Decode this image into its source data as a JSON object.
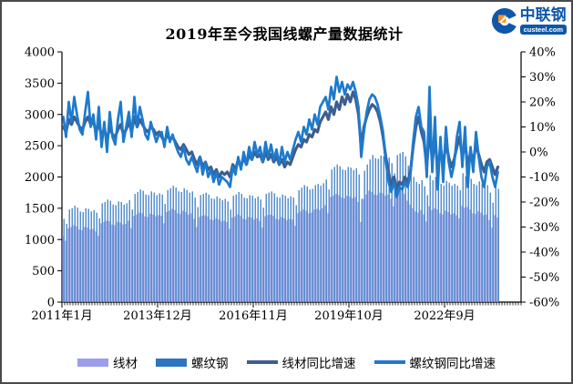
{
  "logo": {
    "brand": "中联钢",
    "domain": "custeel.com"
  },
  "chart_data": {
    "type": "combo bar+line",
    "title": "2019年至今我国线螺产量数据统计",
    "grid": false,
    "legend_position": "bottom",
    "left_axis": {
      "min": 0,
      "max": 4000,
      "step": 500,
      "tick_labels": [
        "4000",
        "3500",
        "3000",
        "2500",
        "2000",
        "1500",
        "1000",
        "500",
        "0"
      ]
    },
    "right_axis": {
      "min": -60,
      "max": 40,
      "step": 10,
      "tick_labels": [
        "40%",
        "30%",
        "20%",
        "10%",
        "0%",
        "-10%",
        "-20%",
        "-30%",
        "-40%",
        "-50%",
        "-60%"
      ]
    },
    "x_axis": {
      "tick_labels": [
        "2011年1月",
        "2013年12月",
        "2016年11月",
        "2019年10月",
        "2022年9月"
      ],
      "tick_month_indexes": [
        0,
        35,
        70,
        105,
        140
      ],
      "months_per_point": 1,
      "total_months": 160,
      "axis_extent_months": 168
    },
    "series": [
      {
        "name": "线材",
        "type": "bar",
        "axis": "left",
        "color": "#9b9eea",
        "values": [
          1050,
          980,
          1180,
          1200,
          1230,
          1210,
          1160,
          1150,
          1200,
          1190,
          1160,
          1170,
          1130,
          1060,
          1260,
          1280,
          1300,
          1290,
          1240,
          1230,
          1280,
          1270,
          1240,
          1250,
          1300,
          1180,
          1380,
          1400,
          1430,
          1420,
          1370,
          1360,
          1410,
          1400,
          1370,
          1390,
          1380,
          1260,
          1440,
          1460,
          1490,
          1470,
          1420,
          1410,
          1460,
          1440,
          1400,
          1420,
          1330,
          1200,
          1360,
          1380,
          1390,
          1370,
          1320,
          1310,
          1340,
          1320,
          1290,
          1300,
          1280,
          1170,
          1350,
          1370,
          1400,
          1380,
          1330,
          1320,
          1360,
          1350,
          1320,
          1340,
          1300,
          1190,
          1370,
          1390,
          1400,
          1380,
          1330,
          1320,
          1360,
          1340,
          1310,
          1330,
          1320,
          1220,
          1420,
          1450,
          1480,
          1460,
          1420,
          1430,
          1480,
          1490,
          1470,
          1500,
          1550,
          1420,
          1680,
          1700,
          1730,
          1710,
          1670,
          1660,
          1700,
          1690,
          1660,
          1680,
          1600,
          1280,
          1650,
          1720,
          1780,
          1760,
          1720,
          1710,
          1750,
          1740,
          1700,
          1720,
          1650,
          1530,
          1750,
          1760,
          1780,
          1730,
          1620,
          1560,
          1500,
          1450,
          1430,
          1470,
          1400,
          1290,
          1530,
          1470,
          1500,
          1480,
          1420,
          1400,
          1460,
          1440,
          1400,
          1420,
          1390,
          1340,
          1540,
          1510,
          1520,
          1480,
          1420,
          1410,
          1450,
          1430,
          1390,
          1400,
          1310,
          1190,
          1390,
          1350
        ]
      },
      {
        "name": "螺纹钢",
        "type": "bar",
        "axis": "left",
        "color": "#2e74be",
        "values": [
          1330,
          1250,
          1480,
          1500,
          1540,
          1510,
          1450,
          1440,
          1500,
          1490,
          1450,
          1470,
          1430,
          1340,
          1580,
          1600,
          1640,
          1620,
          1560,
          1550,
          1610,
          1600,
          1560,
          1580,
          1630,
          1480,
          1730,
          1760,
          1800,
          1780,
          1720,
          1710,
          1770,
          1750,
          1710,
          1740,
          1720,
          1570,
          1790,
          1820,
          1860,
          1830,
          1770,
          1760,
          1820,
          1790,
          1750,
          1770,
          1670,
          1520,
          1710,
          1730,
          1750,
          1720,
          1660,
          1650,
          1690,
          1660,
          1630,
          1650,
          1610,
          1480,
          1700,
          1720,
          1760,
          1730,
          1670,
          1660,
          1710,
          1700,
          1660,
          1690,
          1640,
          1510,
          1730,
          1750,
          1770,
          1740,
          1680,
          1670,
          1720,
          1700,
          1660,
          1690,
          1670,
          1550,
          1790,
          1830,
          1870,
          1850,
          1800,
          1810,
          1870,
          1890,
          1860,
          1900,
          1960,
          1800,
          2120,
          2160,
          2200,
          2170,
          2120,
          2110,
          2160,
          2150,
          2110,
          2140,
          2040,
          1650,
          2100,
          2200,
          2280,
          2350,
          2300,
          2290,
          2340,
          2330,
          2280,
          2310,
          2220,
          2060,
          2350,
          2380,
          2400,
          2330,
          2180,
          2090,
          2000,
          1920,
          1890,
          1950,
          1850,
          1710,
          2030,
          1950,
          2000,
          1970,
          1890,
          1860,
          1940,
          1910,
          1860,
          1890,
          1860,
          1790,
          2060,
          2010,
          2020,
          1970,
          1890,
          1870,
          1930,
          1900,
          1850,
          1870,
          1750,
          1590,
          1860,
          1810
        ]
      },
      {
        "name": "线材同比增速",
        "type": "line",
        "axis": "right",
        "unit": "%",
        "color": "#3d5e8e",
        "values": [
          10,
          8,
          13,
          11,
          14,
          12,
          10,
          9,
          12,
          14,
          11,
          12,
          8,
          12,
          6,
          9,
          5,
          10,
          7,
          6,
          9,
          11,
          7,
          9,
          12,
          8,
          14,
          10,
          13,
          11,
          9,
          8,
          10,
          9,
          7,
          8,
          6,
          4,
          7,
          5,
          6,
          4,
          2,
          1,
          3,
          1,
          -1,
          0,
          -3,
          -5,
          -2,
          -6,
          -4,
          -7,
          -6,
          -9,
          -7,
          -10,
          -8,
          -9,
          -8,
          -10,
          -5,
          -7,
          -3,
          -6,
          -2,
          -5,
          -1,
          -3,
          0,
          -2,
          -1,
          -4,
          0,
          -3,
          -1,
          -4,
          -2,
          -5,
          -3,
          -6,
          -4,
          -5,
          -2,
          1,
          3,
          2,
          5,
          4,
          7,
          6,
          9,
          8,
          12,
          14,
          16,
          13,
          18,
          15,
          20,
          17,
          22,
          19,
          23,
          20,
          24,
          21,
          15,
          2,
          10,
          14,
          17,
          19,
          18,
          16,
          12,
          6,
          -2,
          -8,
          -14,
          -10,
          -15,
          -12,
          -13,
          -10,
          -12,
          -8,
          2,
          10,
          14,
          8,
          4,
          -6,
          10,
          -4,
          6,
          -8,
          2,
          -6,
          4,
          -2,
          -6,
          -3,
          2,
          6,
          -2,
          4,
          -6,
          0,
          -4,
          3,
          -1,
          -5,
          -8,
          -4,
          -3,
          -6,
          -9,
          -6
        ]
      },
      {
        "name": "螺纹钢同比增速",
        "type": "line",
        "axis": "right",
        "unit": "%",
        "color": "#1e7acc",
        "values": [
          14,
          6,
          20,
          12,
          22,
          15,
          9,
          7,
          16,
          24,
          10,
          15,
          5,
          18,
          2,
          12,
          0,
          16,
          6,
          3,
          13,
          20,
          4,
          10,
          16,
          6,
          22,
          10,
          18,
          13,
          7,
          5,
          12,
          8,
          4,
          7,
          8,
          2,
          10,
          4,
          7,
          3,
          0,
          -2,
          2,
          -3,
          -5,
          -2,
          -5,
          -8,
          -2,
          -9,
          -4,
          -10,
          -7,
          -12,
          -8,
          -13,
          -10,
          -11,
          -12,
          -14,
          -6,
          -9,
          -2,
          -7,
          0,
          -5,
          2,
          -3,
          4,
          -1,
          2,
          -4,
          4,
          -2,
          3,
          -3,
          1,
          -5,
          2,
          -4,
          0,
          -3,
          1,
          5,
          8,
          4,
          10,
          7,
          13,
          9,
          15,
          11,
          18,
          20,
          22,
          17,
          26,
          21,
          30,
          24,
          28,
          23,
          27,
          25,
          28,
          24,
          18,
          -2,
          8,
          16,
          21,
          23,
          22,
          19,
          14,
          8,
          -4,
          -12,
          -16,
          -12,
          -18,
          -14,
          -15,
          -12,
          -14,
          -9,
          4,
          14,
          18,
          10,
          8,
          -10,
          26,
          -8,
          14,
          -15,
          6,
          -12,
          10,
          -4,
          -10,
          -5,
          6,
          12,
          -6,
          10,
          -14,
          2,
          -8,
          8,
          -2,
          -10,
          -14,
          -6,
          -4,
          -10,
          -14,
          -8
        ]
      }
    ]
  }
}
